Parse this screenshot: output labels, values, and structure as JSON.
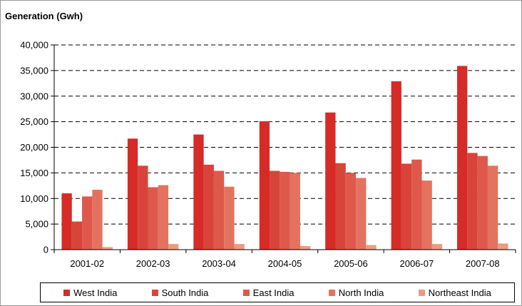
{
  "chart_data": {
    "type": "bar",
    "title": "Generation (Gwh)",
    "categories": [
      "2001-02",
      "2002-03",
      "2003-04",
      "2004-05",
      "2005-06",
      "2006-07",
      "2007-08"
    ],
    "series": [
      {
        "name": "West India",
        "color": "#d62b27",
        "values": [
          11000,
          21700,
          22500,
          25100,
          26800,
          32900,
          35900
        ]
      },
      {
        "name": "South India",
        "color": "#d9443a",
        "values": [
          5500,
          16400,
          16600,
          15400,
          16900,
          16800,
          18900
        ]
      },
      {
        "name": "East India",
        "color": "#de594b",
        "values": [
          10400,
          12200,
          15400,
          15200,
          15000,
          17600,
          18300
        ]
      },
      {
        "name": "North India",
        "color": "#e3735f",
        "values": [
          11700,
          12600,
          12300,
          15000,
          14000,
          13500,
          16400
        ]
      },
      {
        "name": "Northeast India",
        "color": "#ec9a80",
        "values": [
          500,
          1100,
          1100,
          700,
          900,
          1100,
          1200
        ]
      }
    ],
    "yticks": [
      "0",
      "5,000",
      "10,000",
      "15,000",
      "20,000",
      "25,000",
      "30,000",
      "35,000",
      "40,000"
    ],
    "ylim": [
      0,
      40000
    ],
    "grid": "dashed-horizontal",
    "legend": "bottom"
  }
}
